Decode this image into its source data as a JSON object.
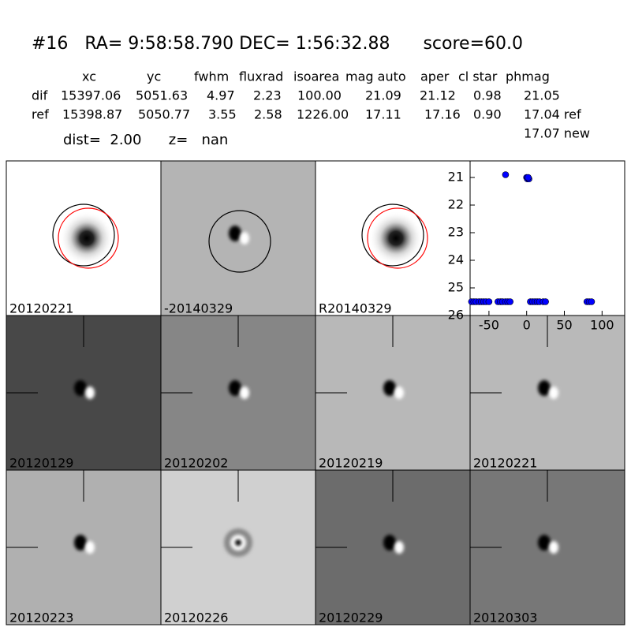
{
  "header": {
    "title": "#16   RA= 9:58:58.790 DEC= 1:56:32.88      score=60.0",
    "distance_line": "dist=  2.00      z=   nan"
  },
  "table": {
    "columns": [
      "xc",
      "yc",
      "fwhm",
      "fluxrad",
      "isoarea",
      "mag auto",
      "aper",
      "cl star",
      "phmag"
    ],
    "rows": [
      {
        "label": "dif",
        "cells": [
          "15397.06",
          "5051.63",
          "4.97",
          "2.23",
          "100.00",
          "21.09",
          "21.12",
          "0.98",
          "21.05"
        ]
      },
      {
        "label": "ref",
        "cells": [
          "15398.87",
          "5050.77",
          "3.55",
          "2.58",
          "1226.00",
          "17.11",
          "17.16",
          "0.90",
          "17.04 ref"
        ]
      }
    ],
    "extra": "17.07 new"
  },
  "stamps": [
    {
      "label": "20120221",
      "background": "#ffffff"
    },
    {
      "label": "-20140329",
      "background": "#b4b4b4"
    },
    {
      "label": "R20140329",
      "background": "#ffffff"
    },
    {
      "label": "20120129",
      "background": "#484848"
    },
    {
      "label": "20120202",
      "background": "#868686"
    },
    {
      "label": "20120219",
      "background": "#b8b8b8"
    },
    {
      "label": "20120221",
      "background": "#b9b9b9",
      "label_color": "#ff0000"
    },
    {
      "label": "20120223",
      "background": "#b0b0b0"
    },
    {
      "label": "20120226",
      "background": "#d0d0d0"
    },
    {
      "label": "20120229",
      "background": "#6c6c6c"
    },
    {
      "label": "20120303",
      "background": "#777777"
    }
  ],
  "chart_data": {
    "type": "scatter",
    "color": "#0000ff",
    "x": [
      -28,
      0,
      1,
      3,
      2,
      -73,
      -70,
      -67,
      -63,
      -60,
      -57,
      -54,
      -50,
      -38,
      -35,
      -32,
      -28,
      -25,
      -22,
      5,
      8,
      11,
      14,
      17,
      22,
      25,
      80,
      83,
      86
    ],
    "values": [
      20.9,
      21.0,
      21.05,
      21.05,
      21.0,
      25.5,
      25.5,
      25.5,
      25.5,
      25.5,
      25.5,
      25.5,
      25.5,
      25.5,
      25.5,
      25.5,
      25.5,
      25.5,
      25.5,
      25.5,
      25.5,
      25.5,
      25.5,
      25.5,
      25.5,
      25.5,
      25.5,
      25.5,
      25.5
    ],
    "xlim": [
      -75,
      130
    ],
    "ylim": [
      26,
      20.4
    ],
    "xticks": [
      -50,
      0,
      50,
      100
    ],
    "yticks": [
      21,
      22,
      23,
      24,
      25,
      26
    ]
  }
}
